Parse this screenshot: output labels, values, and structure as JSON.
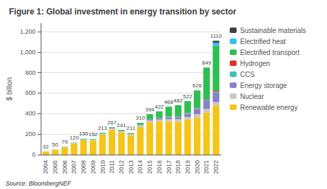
{
  "chart_data": {
    "type": "bar",
    "title": "Figure 1: Global investment in energy transition by sector",
    "ylabel": "$ billion",
    "annotations": [
      "Source: BloombergNEF"
    ],
    "categories": [
      "2004",
      "2005",
      "2006",
      "2007",
      "2008",
      "2009",
      "2010",
      "2011",
      "2012",
      "2013",
      "2014",
      "2015",
      "2016",
      "2017",
      "2018",
      "2019",
      "2020",
      "2021",
      "2022"
    ],
    "stacked": true,
    "series": [
      {
        "name": "Renewable energy",
        "color": "#F5C518",
        "values": [
          30,
          46,
          72,
          110,
          140,
          138,
          195,
          245,
          218,
          190,
          270,
          315,
          325,
          325,
          325,
          345,
          360,
          410,
          480
        ]
      },
      {
        "name": "Nuclear",
        "color": "#C8C8C8",
        "values": [
          2,
          3,
          5,
          7,
          8,
          7,
          9,
          10,
          10,
          9,
          15,
          18,
          18,
          20,
          20,
          22,
          34,
          37,
          32
        ]
      },
      {
        "name": "Energy storage",
        "color": "#8B80C8",
        "values": [
          0,
          0,
          0,
          1,
          1,
          1,
          2,
          3,
          4,
          3,
          6,
          9,
          13,
          20,
          22,
          32,
          52,
          82,
          92
        ]
      },
      {
        "name": "CCS",
        "color": "#40BFBF",
        "values": [
          0,
          0,
          0,
          0,
          0,
          0,
          1,
          1,
          1,
          1,
          2,
          3,
          4,
          5,
          5,
          5,
          6,
          8,
          10
        ]
      },
      {
        "name": "Hydrogen",
        "color": "#E03030",
        "values": [
          0,
          0,
          0,
          0,
          0,
          0,
          0,
          0,
          0,
          0,
          0,
          1,
          1,
          2,
          2,
          2,
          3,
          5,
          10
        ]
      },
      {
        "name": "Electrified transport",
        "color": "#2EBF50",
        "values": [
          0,
          1,
          2,
          2,
          6,
          6,
          6,
          8,
          8,
          8,
          17,
          48,
          61,
          96,
          108,
          116,
          171,
          307,
          437
        ]
      },
      {
        "name": "Electrified heat",
        "color": "#30BFEF",
        "values": [
          0,
          0,
          0,
          0,
          0,
          0,
          0,
          0,
          0,
          0,
          0,
          0,
          0,
          0,
          0,
          0,
          0,
          0,
          30
        ]
      },
      {
        "name": "Sustainable materials",
        "color": "#404040",
        "values": [
          0,
          0,
          0,
          0,
          0,
          0,
          0,
          0,
          0,
          0,
          0,
          0,
          0,
          0,
          0,
          0,
          0,
          0,
          19
        ]
      }
    ],
    "totals": [
      32,
      50,
      79,
      120,
      155,
      152,
      213,
      267,
      241,
      211,
      310,
      394,
      422,
      468,
      482,
      522,
      626,
      849,
      1110
    ],
    "ylim": [
      0,
      1280
    ],
    "yticks": [
      0,
      200,
      400,
      600,
      800,
      {
        "value": 1000,
        "label": "1,000"
      },
      {
        "value": 1200,
        "label": "1,200"
      }
    ],
    "grid": true,
    "legend": "right"
  }
}
